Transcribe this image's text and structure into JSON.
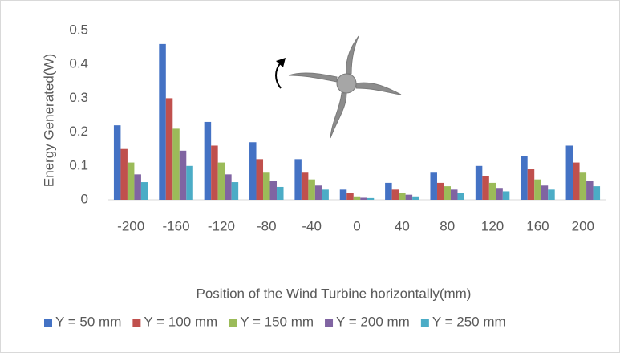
{
  "chart_data": {
    "type": "bar",
    "categories": [
      "-200",
      "-160",
      "-120",
      "-80",
      "-40",
      "0",
      "40",
      "80",
      "120",
      "160",
      "200"
    ],
    "series": [
      {
        "name": "Y = 50 mm",
        "color": "#4472c4",
        "values": [
          0.22,
          0.46,
          0.23,
          0.17,
          0.12,
          0.03,
          0.05,
          0.08,
          0.1,
          0.13,
          0.16
        ]
      },
      {
        "name": "Y = 100 mm",
        "color": "#c0504d",
        "values": [
          0.15,
          0.3,
          0.16,
          0.12,
          0.08,
          0.02,
          0.03,
          0.05,
          0.07,
          0.09,
          0.11
        ]
      },
      {
        "name": "Y = 150 mm",
        "color": "#9bbb59",
        "values": [
          0.11,
          0.21,
          0.11,
          0.08,
          0.06,
          0.01,
          0.02,
          0.04,
          0.05,
          0.06,
          0.08
        ]
      },
      {
        "name": "Y = 200 mm",
        "color": "#8064a2",
        "values": [
          0.075,
          0.145,
          0.075,
          0.055,
          0.042,
          0.006,
          0.015,
          0.03,
          0.035,
          0.042,
          0.056
        ]
      },
      {
        "name": "Y = 250 mm",
        "color": "#4bacc6",
        "values": [
          0.052,
          0.1,
          0.052,
          0.038,
          0.03,
          0.005,
          0.01,
          0.02,
          0.025,
          0.03,
          0.04
        ]
      }
    ],
    "ylim": [
      0,
      0.5
    ],
    "yticks": [
      0,
      0.1,
      0.2,
      0.3,
      0.4,
      0.5
    ],
    "grid": false,
    "x_label": "Position of the Wind Turbine horizontally(mm)",
    "y_label": "Energy Generated(W)",
    "legend": "bottom"
  }
}
